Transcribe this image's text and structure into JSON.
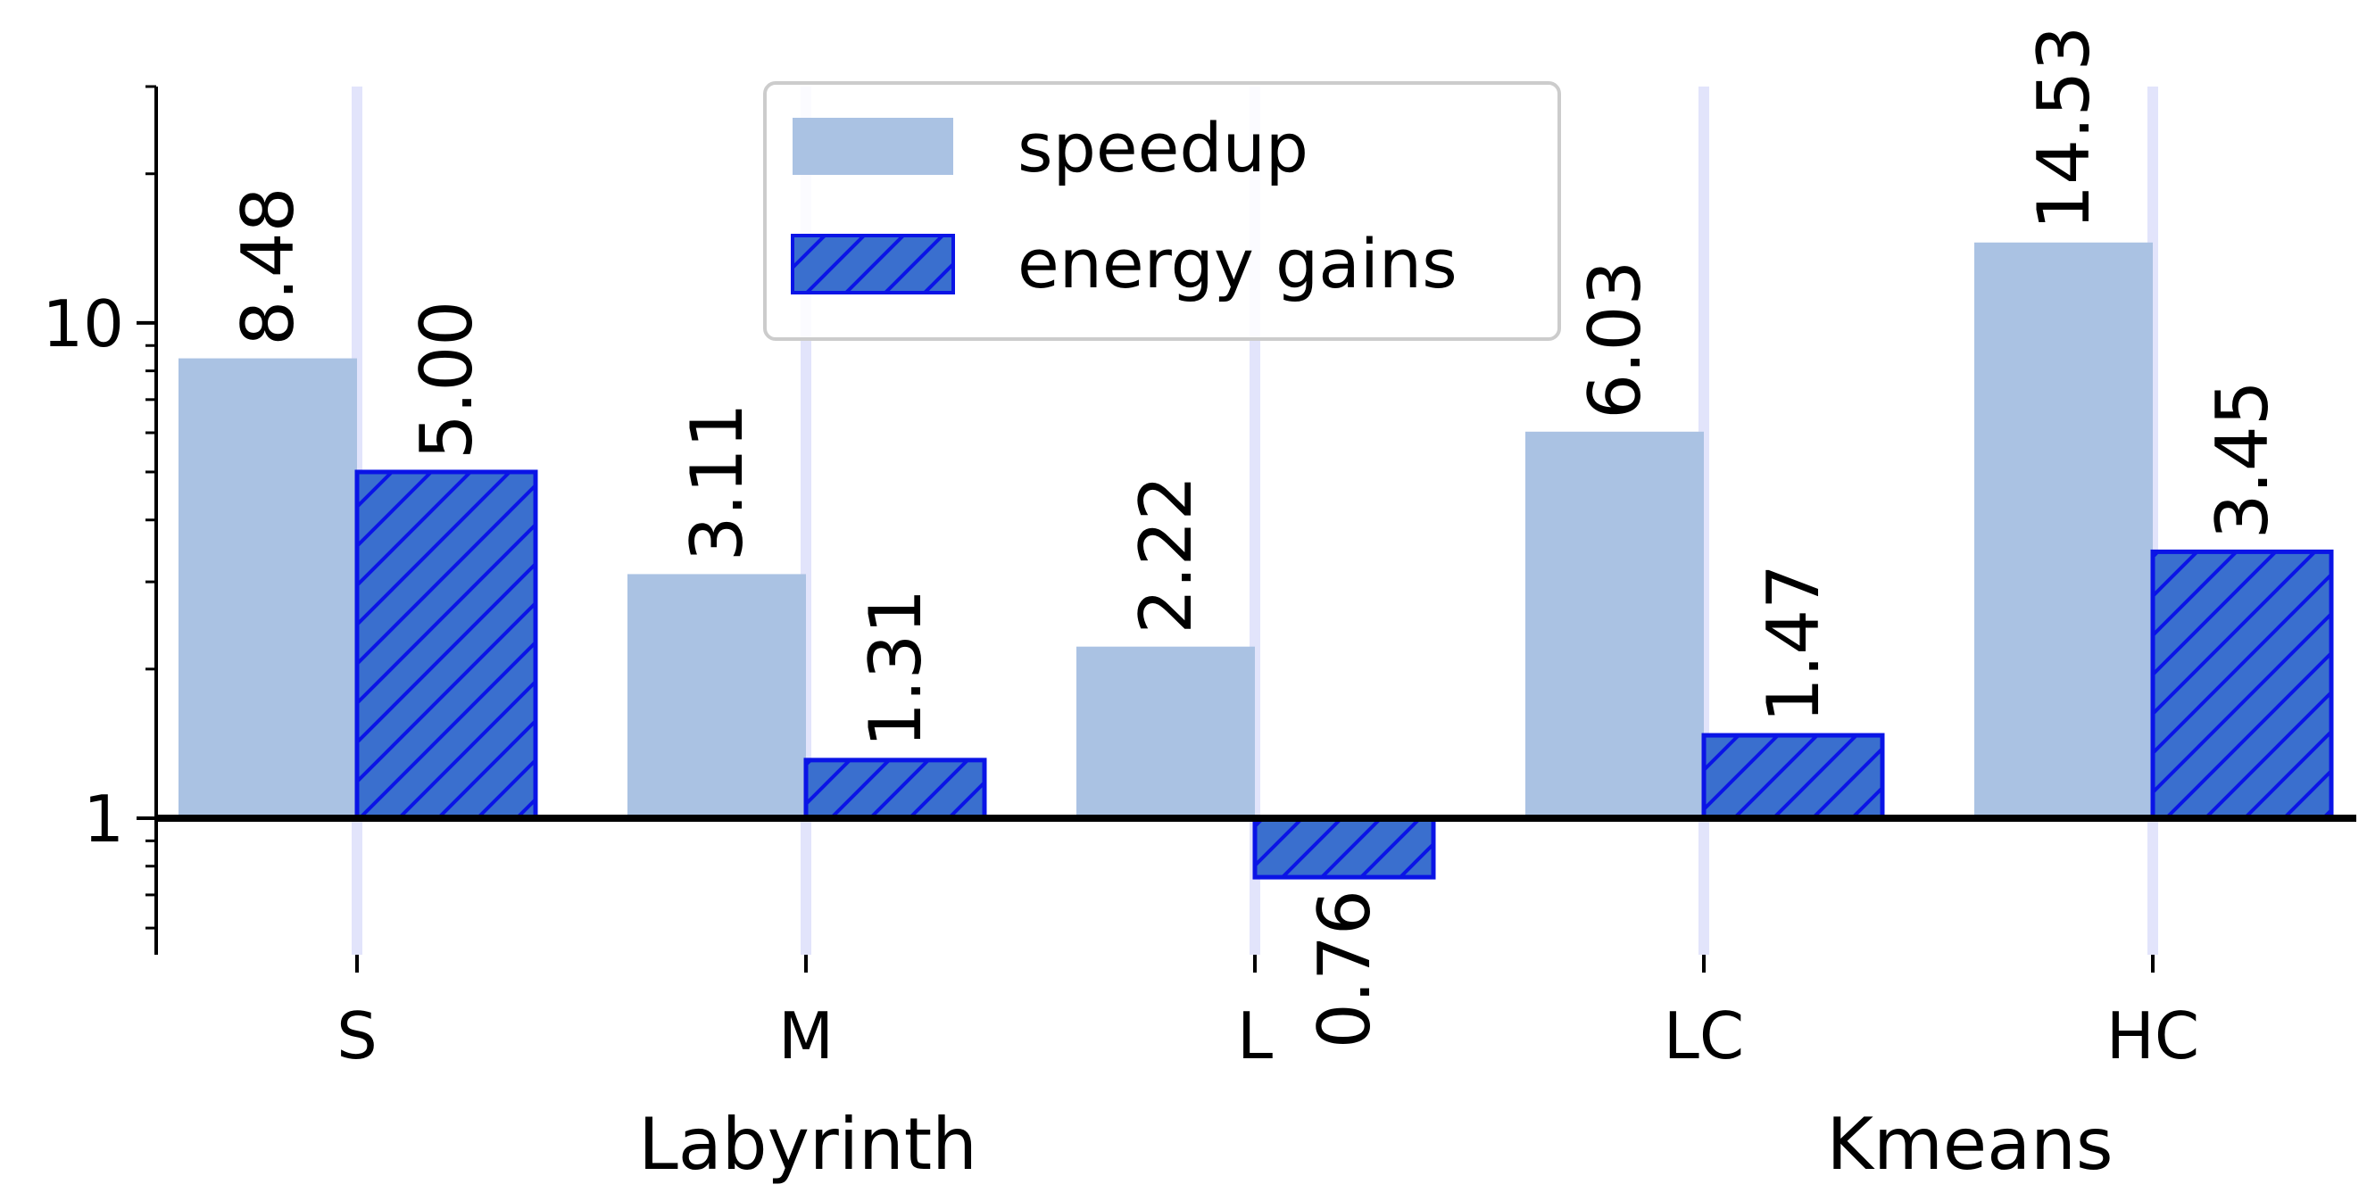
{
  "chart_data": {
    "type": "bar",
    "scale": "log",
    "ylim": [
      0.53,
      30
    ],
    "yticks": [
      {
        "value": 1,
        "label": "1"
      },
      {
        "value": 10,
        "label": "10"
      }
    ],
    "categories": [
      "S",
      "M",
      "L",
      "LC",
      "HC"
    ],
    "groups": [
      {
        "label": "Labyrinth",
        "categories": [
          "S",
          "M",
          "L"
        ]
      },
      {
        "label": "Kmeans",
        "categories": [
          "LC",
          "HC"
        ]
      }
    ],
    "series": [
      {
        "name": "speedup",
        "values": [
          8.48,
          3.11,
          2.22,
          6.03,
          14.53
        ],
        "labels": [
          "8.48",
          "3.11",
          "2.22",
          "6.03",
          "14.53"
        ],
        "color": "#aac2e3",
        "hatch": false
      },
      {
        "name": "energy gains",
        "values": [
          5.0,
          1.31,
          0.76,
          1.47,
          3.45
        ],
        "labels": [
          "5.00",
          "1.31",
          "0.76",
          "1.47",
          "3.45"
        ],
        "color": "#3a6fce",
        "edge_color": "#0a14e6",
        "hatch": true
      }
    ],
    "baseline": 1,
    "legend": "top-center",
    "grid": "vertical lines at categories",
    "grid_color": "#e2e4fb"
  }
}
